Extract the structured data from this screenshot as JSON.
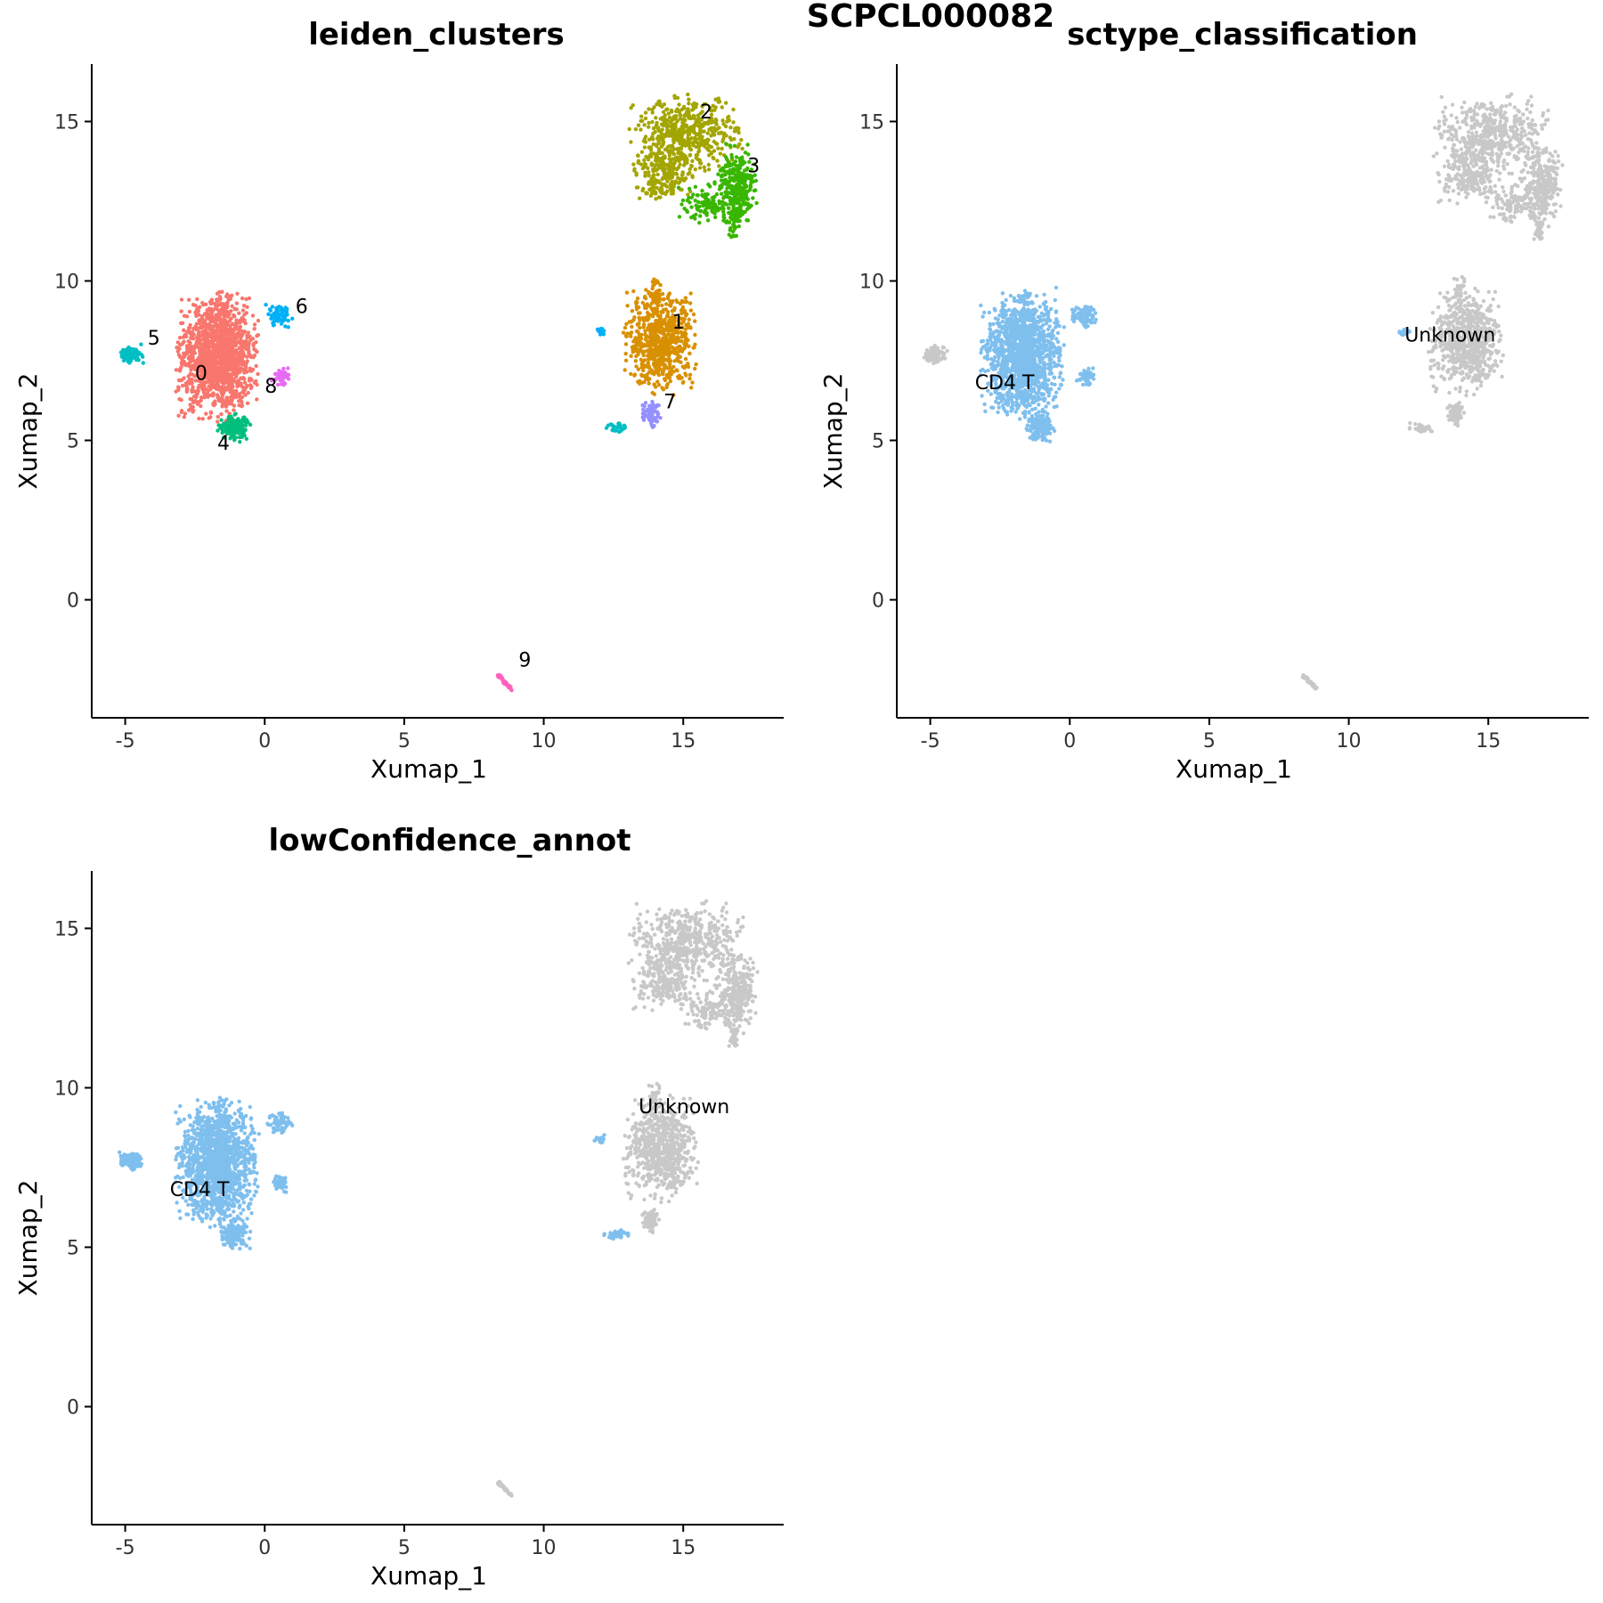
{
  "figure": {
    "title": "SCPCL000082"
  },
  "chart_data": [
    {
      "type": "scatter",
      "title": "leiden_clusters",
      "xlabel": "Xumap_1",
      "ylabel": "Xumap_2",
      "xlim": [
        -6.2,
        18.6
      ],
      "ylim": [
        -3.7,
        16.8
      ],
      "xticks": [
        -5,
        0,
        5,
        10,
        15
      ],
      "yticks": [
        0,
        5,
        10,
        15
      ],
      "grid": false,
      "legend": "none",
      "groups": [
        {
          "name": "0",
          "color": "#F8766D",
          "label": "0",
          "label_pos": [
            -2.5,
            6.9
          ],
          "blobs": [
            [
              -1.7,
              7.6,
              1.15,
              1.55,
              1400
            ],
            [
              -1.55,
              9.2,
              0.25,
              0.5,
              40
            ]
          ]
        },
        {
          "name": "1",
          "color": "#D89000",
          "label": "1",
          "label_pos": [
            14.6,
            8.5
          ],
          "blobs": [
            [
              14.2,
              8.1,
              1.05,
              1.3,
              700
            ],
            [
              14.0,
              9.7,
              0.2,
              0.4,
              25
            ]
          ]
        },
        {
          "name": "2",
          "color": "#A3A500",
          "label": "2",
          "label_pos": [
            15.6,
            15.1
          ],
          "blobs": [
            [
              15.1,
              14.6,
              1.6,
              1.0,
              500
            ],
            [
              14.3,
              13.3,
              0.9,
              0.7,
              200
            ]
          ]
        },
        {
          "name": "3",
          "color": "#39B600",
          "label": "3",
          "label_pos": [
            17.3,
            13.4
          ],
          "blobs": [
            [
              16.9,
              13.0,
              0.6,
              1.0,
              280
            ],
            [
              16.0,
              12.4,
              0.9,
              0.5,
              120
            ],
            [
              16.8,
              11.7,
              0.2,
              0.4,
              25
            ]
          ]
        },
        {
          "name": "4",
          "color": "#00BF7D",
          "label": "4",
          "label_pos": [
            -1.7,
            4.7
          ],
          "blobs": [
            [
              -1.1,
              5.4,
              0.45,
              0.35,
              150
            ]
          ]
        },
        {
          "name": "5",
          "color": "#00BFC4",
          "label": "5",
          "label_pos": [
            -4.2,
            8.0
          ],
          "blobs": [
            [
              -4.8,
              7.7,
              0.35,
              0.22,
              90
            ],
            [
              12.6,
              5.4,
              0.35,
              0.12,
              35
            ]
          ]
        },
        {
          "name": "6",
          "color": "#00B0F6",
          "label": "6",
          "label_pos": [
            1.1,
            9.0
          ],
          "blobs": [
            [
              0.5,
              8.9,
              0.4,
              0.28,
              70
            ],
            [
              12.0,
              8.4,
              0.15,
              0.1,
              15
            ]
          ]
        },
        {
          "name": "7",
          "color": "#9590FF",
          "label": "7",
          "label_pos": [
            14.3,
            6.0
          ],
          "blobs": [
            [
              13.85,
              5.85,
              0.3,
              0.35,
              60
            ]
          ]
        },
        {
          "name": "8",
          "color": "#E76BF3",
          "label": "8",
          "label_pos": [
            0.0,
            6.5
          ],
          "blobs": [
            [
              0.55,
              7.0,
              0.25,
              0.22,
              40
            ]
          ]
        },
        {
          "name": "9",
          "color": "#FF62BC",
          "label": "9",
          "label_pos": [
            9.1,
            -2.1
          ],
          "line": [
            [
              8.35,
              -2.35
            ],
            [
              8.85,
              -2.8
            ]
          ],
          "n": 30
        }
      ]
    },
    {
      "type": "scatter",
      "title": "sctype_classification",
      "xlabel": "Xumap_1",
      "ylabel": "Xumap_2",
      "xlim": [
        -6.2,
        18.6
      ],
      "ylim": [
        -3.7,
        16.8
      ],
      "xticks": [
        -5,
        0,
        5,
        10,
        15
      ],
      "yticks": [
        0,
        5,
        10,
        15
      ],
      "grid": false,
      "legend": "none",
      "groups": [
        {
          "name": "Unknown",
          "color": "#C8C8C8",
          "label": "Unknown",
          "label_pos": [
            12.0,
            8.1
          ],
          "blobs": [
            [
              14.2,
              8.1,
              1.05,
              1.3,
              700
            ],
            [
              14.0,
              9.7,
              0.2,
              0.4,
              25
            ],
            [
              15.1,
              14.6,
              1.6,
              1.0,
              500
            ],
            [
              14.3,
              13.3,
              0.9,
              0.7,
              200
            ],
            [
              16.9,
              13.0,
              0.6,
              1.0,
              280
            ],
            [
              16.0,
              12.4,
              0.9,
              0.5,
              120
            ],
            [
              16.8,
              11.7,
              0.2,
              0.4,
              25
            ],
            [
              13.85,
              5.85,
              0.3,
              0.35,
              60
            ],
            [
              12.6,
              5.4,
              0.35,
              0.12,
              35
            ],
            [
              -4.8,
              7.7,
              0.35,
              0.22,
              90
            ]
          ],
          "line": [
            [
              8.35,
              -2.35
            ],
            [
              8.85,
              -2.8
            ]
          ],
          "n": 30
        },
        {
          "name": "CD4 T",
          "color": "#7FBFEE",
          "label": "CD4 T",
          "label_pos": [
            -3.4,
            6.6
          ],
          "blobs": [
            [
              -1.7,
              7.6,
              1.15,
              1.55,
              1400
            ],
            [
              -1.55,
              9.2,
              0.25,
              0.5,
              40
            ],
            [
              -1.1,
              5.4,
              0.45,
              0.35,
              150
            ],
            [
              0.5,
              8.9,
              0.4,
              0.28,
              70
            ],
            [
              0.55,
              7.0,
              0.25,
              0.22,
              40
            ],
            [
              12.0,
              8.4,
              0.15,
              0.1,
              15
            ]
          ]
        }
      ]
    },
    {
      "type": "scatter",
      "title": "lowConfidence_annot",
      "xlabel": "Xumap_1",
      "ylabel": "Xumap_2",
      "xlim": [
        -6.2,
        18.6
      ],
      "ylim": [
        -3.7,
        16.8
      ],
      "xticks": [
        -5,
        0,
        5,
        10,
        15
      ],
      "yticks": [
        0,
        5,
        10,
        15
      ],
      "grid": false,
      "legend": "none",
      "groups": [
        {
          "name": "Unknown",
          "color": "#C8C8C8",
          "label": "Unknown",
          "label_pos": [
            13.4,
            9.2
          ],
          "blobs": [
            [
              14.2,
              8.1,
              1.05,
              1.3,
              700
            ],
            [
              14.0,
              9.7,
              0.2,
              0.4,
              25
            ],
            [
              15.1,
              14.6,
              1.6,
              1.0,
              500
            ],
            [
              14.3,
              13.3,
              0.9,
              0.7,
              200
            ],
            [
              16.9,
              13.0,
              0.6,
              1.0,
              280
            ],
            [
              16.0,
              12.4,
              0.9,
              0.5,
              120
            ],
            [
              16.8,
              11.7,
              0.2,
              0.4,
              25
            ],
            [
              13.85,
              5.85,
              0.3,
              0.35,
              60
            ]
          ],
          "line": [
            [
              8.35,
              -2.35
            ],
            [
              8.85,
              -2.8
            ]
          ],
          "n": 30
        },
        {
          "name": "CD4 T",
          "color": "#7FBFEE",
          "label": "CD4 T",
          "label_pos": [
            -3.4,
            6.6
          ],
          "blobs": [
            [
              -1.7,
              7.6,
              1.15,
              1.55,
              1400
            ],
            [
              -1.55,
              9.2,
              0.25,
              0.5,
              40
            ],
            [
              -1.1,
              5.4,
              0.45,
              0.35,
              150
            ],
            [
              0.5,
              8.9,
              0.4,
              0.28,
              70
            ],
            [
              0.55,
              7.0,
              0.25,
              0.22,
              40
            ],
            [
              -4.8,
              7.7,
              0.35,
              0.22,
              90
            ],
            [
              12.0,
              8.4,
              0.15,
              0.1,
              15
            ],
            [
              12.6,
              5.4,
              0.35,
              0.12,
              35
            ]
          ]
        }
      ]
    }
  ]
}
